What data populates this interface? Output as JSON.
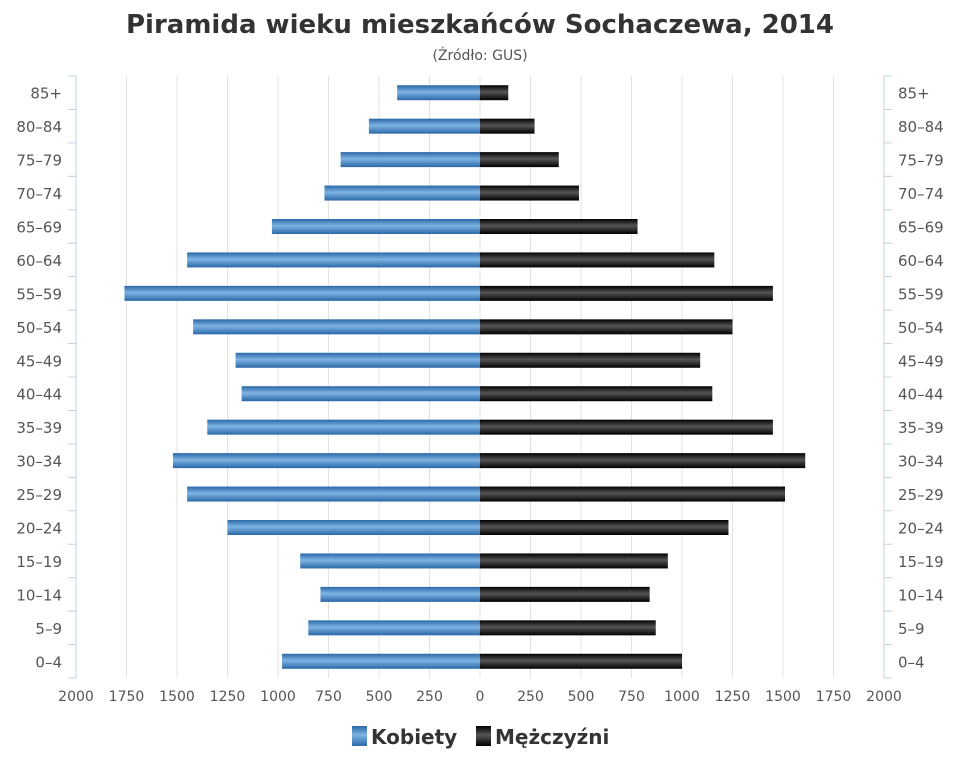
{
  "chart_data": {
    "type": "bar",
    "orientation": "horizontal-population-pyramid",
    "title": "Piramida wieku mieszkańców Sochaczewa, 2014",
    "subtitle": "(Źródło: GUS)",
    "categories": [
      "0–4",
      "5–9",
      "10–14",
      "15–19",
      "20–24",
      "25–29",
      "30–34",
      "35–39",
      "40–44",
      "45–49",
      "50–54",
      "55–59",
      "60–64",
      "65–69",
      "70–74",
      "75–79",
      "80–84",
      "85+"
    ],
    "series": [
      {
        "name": "Kobiety",
        "side": "left",
        "color": "#3f86c6",
        "values": [
          980,
          850,
          790,
          890,
          1250,
          1450,
          1520,
          1350,
          1180,
          1210,
          1420,
          1760,
          1450,
          1030,
          770,
          690,
          550,
          410
        ]
      },
      {
        "name": "Mężczyźni",
        "side": "right",
        "color": "#1a1a1a",
        "values": [
          1000,
          870,
          840,
          930,
          1230,
          1510,
          1610,
          1450,
          1150,
          1090,
          1250,
          1450,
          1160,
          780,
          490,
          390,
          270,
          140
        ]
      }
    ],
    "xlim": [
      -2000,
      2000
    ],
    "x_ticks": [
      -2000,
      -1750,
      -1500,
      -1250,
      -1000,
      -750,
      -500,
      -250,
      0,
      250,
      500,
      750,
      1000,
      1250,
      1500,
      1750,
      2000
    ],
    "x_tick_labels": [
      "2000",
      "1750",
      "1500",
      "1250",
      "1000",
      "750",
      "500",
      "250",
      "0",
      "250",
      "500",
      "750",
      "1000",
      "1250",
      "1500",
      "1750",
      "2000"
    ],
    "grid": "vertical",
    "legend_position": "bottom-center"
  }
}
